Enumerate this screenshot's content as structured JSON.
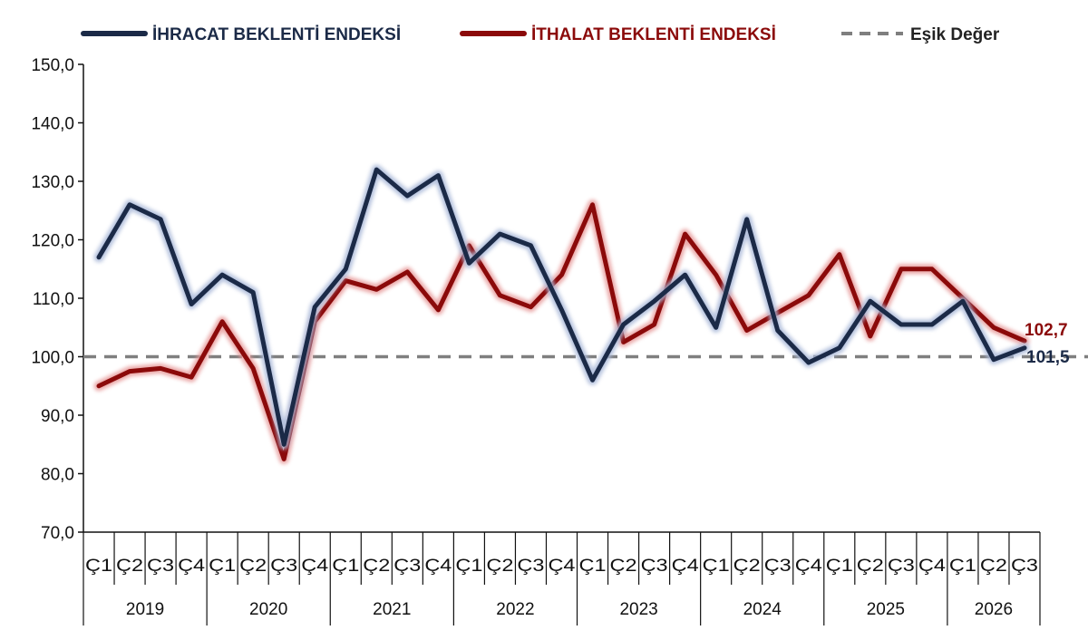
{
  "chart_data": {
    "type": "line",
    "title": "",
    "xlabel": "",
    "ylabel": "",
    "ylim": [
      70,
      150
    ],
    "yticks": [
      "70,0",
      "80,0",
      "90,0",
      "100,0",
      "110,0",
      "120,0",
      "130,0",
      "140,0",
      "150,0"
    ],
    "legend_position": "top",
    "grid": false,
    "quarters": [
      "Ç1",
      "Ç2",
      "Ç3",
      "Ç4",
      "Ç1",
      "Ç2",
      "Ç3",
      "Ç4",
      "Ç1",
      "Ç2",
      "Ç3",
      "Ç4",
      "Ç1",
      "Ç2",
      "Ç3",
      "Ç4",
      "Ç1",
      "Ç2",
      "Ç3",
      "Ç4",
      "Ç1",
      "Ç2",
      "Ç3",
      "Ç4",
      "Ç1",
      "Ç2",
      "Ç3",
      "Ç4",
      "Ç1",
      "Ç2",
      "Ç3"
    ],
    "years": [
      {
        "label": "2019",
        "quarters": 4
      },
      {
        "label": "2020",
        "quarters": 4
      },
      {
        "label": "2021",
        "quarters": 4
      },
      {
        "label": "2022",
        "quarters": 4
      },
      {
        "label": "2023",
        "quarters": 4
      },
      {
        "label": "2024",
        "quarters": 4
      },
      {
        "label": "2025",
        "quarters": 4
      },
      {
        "label": "2026",
        "quarters": 3
      }
    ],
    "series": [
      {
        "name": "İHRACAT BEKLENTİ ENDEKSİ",
        "color": "#1b2a47",
        "values": [
          117,
          126,
          123.5,
          109,
          114,
          111,
          85,
          108.5,
          115,
          132,
          127.5,
          131,
          116,
          121,
          119,
          108,
          96,
          105.5,
          109.5,
          114,
          105,
          123.5,
          104.5,
          99,
          101.5,
          109.5,
          105.5,
          105.5,
          109.5,
          99.5,
          101.5
        ],
        "end_label": "101,5"
      },
      {
        "name": "İTHALAT BEKLENTİ ENDEKSİ",
        "color": "#8b0a0a",
        "values": [
          95,
          97.5,
          98,
          96.5,
          106,
          98,
          82.5,
          106,
          113,
          111.5,
          114.5,
          108,
          119,
          110.5,
          108.5,
          114,
          126,
          102.5,
          105.5,
          121,
          114,
          104.5,
          107.5,
          110.5,
          117.5,
          103.5,
          115,
          115,
          110,
          105,
          102.7
        ],
        "end_label": "102,7"
      },
      {
        "name": "Eşik Değer",
        "color": "#7f7f7f",
        "constant": 100
      }
    ]
  }
}
